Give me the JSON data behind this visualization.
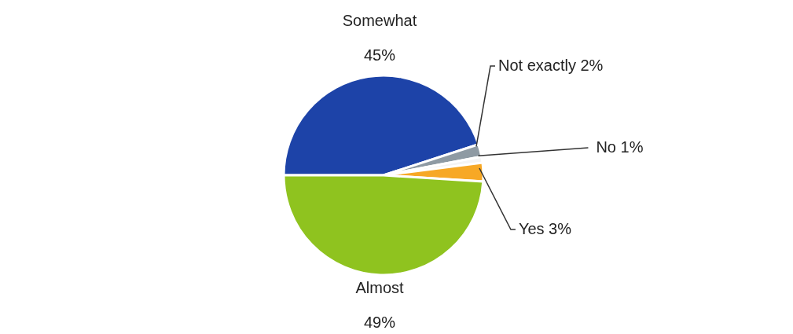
{
  "chart_data": {
    "type": "pie",
    "categories": [
      "Somewhat",
      "Not exactly",
      "No",
      "Yes",
      "Almost"
    ],
    "values": [
      45,
      2,
      1,
      3,
      49
    ],
    "value_labels": [
      "45%",
      "2%",
      "1%",
      "3%",
      "49%"
    ],
    "colors": [
      "#1d43a8",
      "#8e9aa3",
      "#f4f4f4",
      "#f7a825",
      "#8fc31f"
    ]
  }
}
